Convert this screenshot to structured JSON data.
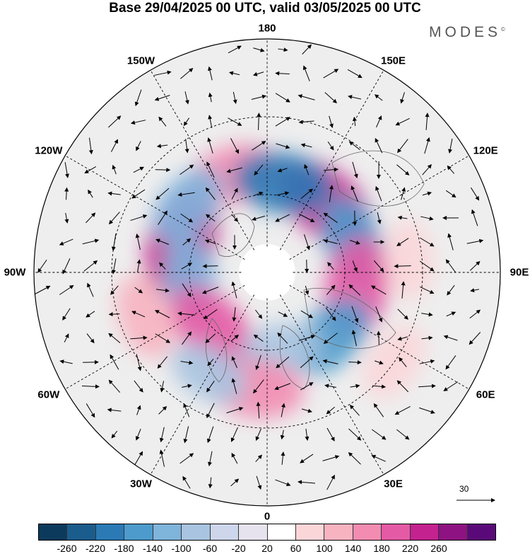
{
  "title": "Base 29/04/2025 00 UTC, valid 03/05/2025 00 UTC",
  "brand": "MODES",
  "brand_mark": "©",
  "longitudes": [
    {
      "label": "180",
      "deg": 180
    },
    {
      "label": "150E",
      "deg": 150
    },
    {
      "label": "120E",
      "deg": 120
    },
    {
      "label": "90E",
      "deg": 90
    },
    {
      "label": "60E",
      "deg": 60
    },
    {
      "label": "30E",
      "deg": 30
    },
    {
      "label": "0",
      "deg": 0
    },
    {
      "label": "30W",
      "deg": -30
    },
    {
      "label": "60W",
      "deg": -60
    },
    {
      "label": "90W",
      "deg": -90
    },
    {
      "label": "120W",
      "deg": -120
    },
    {
      "label": "150W",
      "deg": -150
    }
  ],
  "reference_vector": "30",
  "colorbar": {
    "ticks": [
      "-260",
      "-220",
      "-180",
      "-140",
      "-100",
      "-60",
      "-20",
      "20",
      "60",
      "100",
      "140",
      "180",
      "220",
      "260"
    ],
    "colors": [
      "#0c3a5c",
      "#1a5c8c",
      "#2b7ab5",
      "#4d9bcc",
      "#7fb4db",
      "#a8c4e0",
      "#cdd6ea",
      "#e6e3ef",
      "#ffffff",
      "#fbd6d9",
      "#f7b3c0",
      "#f28cb1",
      "#e45aa5",
      "#c3228f",
      "#8e1281",
      "#5a0a78"
    ]
  },
  "anomaly_centers": [
    {
      "lon": -110,
      "lat": 55,
      "value": 220,
      "color": "#c3228f"
    },
    {
      "lon": 140,
      "lat": 55,
      "value": 200,
      "color": "#c3228f"
    },
    {
      "lon": -160,
      "lat": 50,
      "value": 120,
      "color": "#f28cb1"
    },
    {
      "lon": 170,
      "lat": 55,
      "value": -160,
      "color": "#2b7ab5"
    },
    {
      "lon": -130,
      "lat": 50,
      "value": -100,
      "color": "#7fb4db"
    },
    {
      "lon": 110,
      "lat": 55,
      "value": -120,
      "color": "#4d9bcc"
    },
    {
      "lon": -85,
      "lat": 60,
      "value": -90,
      "color": "#7fb4db"
    },
    {
      "lon": 80,
      "lat": 55,
      "value": 180,
      "color": "#e45aa5"
    },
    {
      "lon": -45,
      "lat": 60,
      "value": 160,
      "color": "#e45aa5"
    },
    {
      "lon": 45,
      "lat": 55,
      "value": -120,
      "color": "#4d9bcc"
    },
    {
      "lon": 10,
      "lat": 60,
      "value": -70,
      "color": "#a8c4e0"
    },
    {
      "lon": -5,
      "lat": 45,
      "value": 140,
      "color": "#f28cb1"
    },
    {
      "lon": -70,
      "lat": 40,
      "value": 90,
      "color": "#f7b3c0"
    },
    {
      "lon": 55,
      "lat": 30,
      "value": 70,
      "color": "#fbd6d9"
    },
    {
      "lon": 95,
      "lat": 35,
      "value": 60,
      "color": "#fbd6d9"
    },
    {
      "lon": -30,
      "lat": 45,
      "value": -70,
      "color": "#a8c4e0"
    }
  ]
}
